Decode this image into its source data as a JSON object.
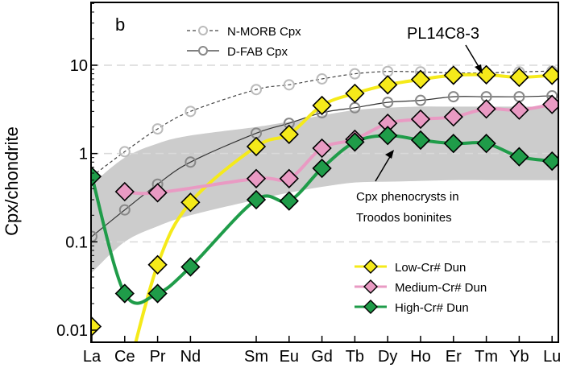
{
  "chart_data": {
    "type": "line",
    "panel_label": "b",
    "ylabel": "Cpx/chondrite",
    "y_scale": "log",
    "ylim": [
      0.008,
      40
    ],
    "y_ticks": [
      {
        "value": 10,
        "label": "10"
      },
      {
        "value": 1,
        "label": "1"
      },
      {
        "value": 0.1,
        "label": "0.1"
      },
      {
        "value": 0.01,
        "label": "0.01"
      }
    ],
    "grid": {
      "horizontal_dashed": true,
      "values": [
        10,
        1,
        0.1
      ]
    },
    "x_positions": {
      "La": 1,
      "Ce": 2,
      "Pr": 3,
      "Nd": 4,
      "Sm": 6,
      "Eu": 7,
      "Gd": 8,
      "Tb": 9,
      "Dy": 10,
      "Ho": 11,
      "Er": 12,
      "Tm": 13,
      "Yb": 14,
      "Lu": 15
    },
    "categories": [
      "La",
      "Ce",
      "Pr",
      "Nd",
      "Sm",
      "Eu",
      "Gd",
      "Tb",
      "Dy",
      "Ho",
      "Er",
      "Tm",
      "Yb",
      "Lu"
    ],
    "sample_label": "PL14C8-3",
    "reference_lines": [
      {
        "name": "N-MORB Cpx",
        "style": "dashed",
        "color": "#444444",
        "marker_color": "#bbbbbb",
        "values": [
          0.55,
          1.05,
          1.9,
          3.0,
          5.3,
          6.0,
          7.0,
          8.0,
          8.5,
          8.4,
          8.2,
          8.2,
          8.4,
          8.6
        ]
      },
      {
        "name": "D-FAB Cpx",
        "style": "solid",
        "color": "#333333",
        "marker_color": "#888888",
        "values": [
          0.115,
          0.23,
          0.45,
          0.8,
          1.7,
          2.2,
          2.9,
          3.3,
          3.8,
          4.0,
          4.4,
          4.4,
          4.4,
          4.5
        ]
      }
    ],
    "series": [
      {
        "name": "Low-Cr# Dun",
        "color": "#f5ea1a",
        "marker_color": "#f5ea1a",
        "values": [
          0.011,
          null,
          0.055,
          0.28,
          1.2,
          1.65,
          3.5,
          4.8,
          6.0,
          6.9,
          7.7,
          7.8,
          7.3,
          7.7
        ]
      },
      {
        "name": "Medium-Cr# Dun",
        "color": "#e99ac3",
        "marker_color": "#e99ac3",
        "values": [
          null,
          0.37,
          0.36,
          null,
          0.52,
          0.52,
          1.15,
          1.45,
          2.2,
          2.45,
          2.6,
          3.2,
          3.1,
          3.6
        ]
      },
      {
        "name": "High-Cr# Dun",
        "color": "#1f9c49",
        "marker_color": "#1f9c49",
        "values": [
          0.55,
          0.026,
          0.026,
          0.052,
          0.3,
          0.29,
          0.68,
          1.35,
          1.6,
          1.42,
          1.3,
          1.3,
          0.92,
          0.82
        ]
      }
    ],
    "band": {
      "label_lines": [
        "Cpx phenocrysts in",
        "Troodos boninites"
      ],
      "color": "#cccccc",
      "upper": [
        0.45,
        0.9,
        1.3,
        1.6,
        2.0,
        2.3,
        2.7,
        3.1,
        3.3,
        3.4,
        3.4,
        3.4,
        3.4,
        3.4
      ],
      "lower": [
        0.045,
        0.1,
        0.15,
        0.2,
        0.3,
        0.36,
        0.42,
        0.47,
        0.48,
        0.49,
        0.5,
        0.5,
        0.5,
        0.5
      ]
    },
    "legend": {
      "placement": "bottom-right",
      "entries": [
        "Low-Cr# Dun",
        "Medium-Cr# Dun",
        "High-Cr# Dun"
      ]
    },
    "top_legend": {
      "placement": "top-center",
      "entries": [
        "N-MORB Cpx",
        "D-FAB Cpx"
      ]
    }
  }
}
